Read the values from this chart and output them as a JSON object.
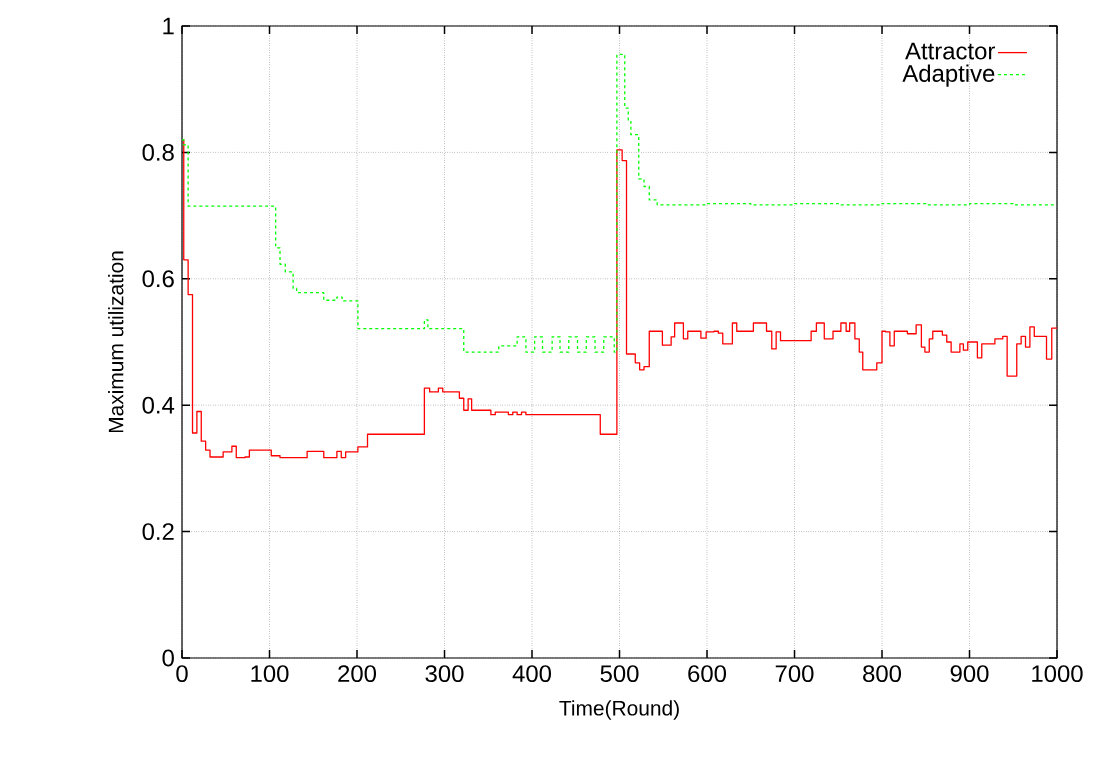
{
  "chart_data": {
    "type": "step",
    "xlabel": "Time(Round)",
    "ylabel": "Maximum utilization",
    "xlim": [
      0,
      1000
    ],
    "ylim": [
      0,
      1
    ],
    "xticks": [
      0,
      100,
      200,
      300,
      400,
      500,
      600,
      700,
      800,
      900,
      1000
    ],
    "yticks": [
      0,
      0.2,
      0.4,
      0.6,
      0.8,
      1
    ],
    "grid": true,
    "legend": "top right",
    "series": [
      {
        "name": "Attractor",
        "color": "#ff0000",
        "line_style": "solid",
        "x": [
          0,
          2,
          7,
          12,
          17,
          22,
          27,
          32,
          47,
          57,
          62,
          72,
          77,
          102,
          112,
          143,
          162,
          177,
          182,
          187,
          201,
          212,
          277,
          283,
          293,
          298,
          317,
          322,
          327,
          331,
          353,
          358,
          373,
          378,
          383,
          388,
          393,
          478,
          497,
          503,
          508,
          518,
          523,
          528,
          534,
          549,
          559,
          563,
          573,
          578,
          593,
          599,
          608,
          613,
          618,
          629,
          634,
          653,
          668,
          674,
          679,
          684,
          719,
          725,
          734,
          744,
          753,
          759,
          763,
          769,
          774,
          778,
          794,
          800,
          804,
          809,
          814,
          829,
          839,
          845,
          849,
          854,
          858,
          869,
          874,
          879,
          889,
          893,
          898,
          909,
          914,
          929,
          938,
          943,
          954,
          959,
          964,
          969,
          974,
          988,
          994,
          1000
        ],
        "values": [
          0.82,
          0.63,
          0.575,
          0.356,
          0.39,
          0.343,
          0.329,
          0.318,
          0.326,
          0.335,
          0.317,
          0.318,
          0.329,
          0.32,
          0.317,
          0.327,
          0.317,
          0.327,
          0.317,
          0.326,
          0.334,
          0.354,
          0.427,
          0.421,
          0.427,
          0.421,
          0.411,
          0.392,
          0.41,
          0.392,
          0.385,
          0.389,
          0.385,
          0.389,
          0.385,
          0.389,
          0.385,
          0.354,
          0.804,
          0.787,
          0.481,
          0.467,
          0.456,
          0.461,
          0.517,
          0.495,
          0.508,
          0.53,
          0.505,
          0.517,
          0.506,
          0.516,
          0.517,
          0.514,
          0.497,
          0.53,
          0.517,
          0.53,
          0.517,
          0.489,
          0.516,
          0.502,
          0.517,
          0.53,
          0.505,
          0.517,
          0.53,
          0.517,
          0.53,
          0.505,
          0.484,
          0.456,
          0.467,
          0.517,
          0.516,
          0.494,
          0.517,
          0.513,
          0.527,
          0.492,
          0.484,
          0.505,
          0.517,
          0.511,
          0.5,
          0.484,
          0.497,
          0.487,
          0.5,
          0.475,
          0.497,
          0.505,
          0.509,
          0.446,
          0.497,
          0.509,
          0.492,
          0.524,
          0.509,
          0.473,
          0.522,
          0.522
        ]
      },
      {
        "name": "Adaptive",
        "color": "#00ff00",
        "line_style": "dashed",
        "x": [
          0,
          2,
          7,
          107,
          112,
          118,
          127,
          131,
          162,
          177,
          183,
          201,
          277,
          281,
          322,
          362,
          383,
          393,
          403,
          412,
          423,
          432,
          442,
          452,
          462,
          472,
          482,
          494,
          497,
          506,
          510,
          513,
          522,
          528,
          534,
          543,
          600,
          650,
          700,
          750,
          800,
          850,
          900,
          950,
          1000
        ],
        "values": [
          0.82,
          0.812,
          0.715,
          0.649,
          0.623,
          0.611,
          0.585,
          0.578,
          0.566,
          0.571,
          0.565,
          0.521,
          0.535,
          0.521,
          0.484,
          0.494,
          0.508,
          0.484,
          0.508,
          0.484,
          0.508,
          0.484,
          0.508,
          0.484,
          0.508,
          0.484,
          0.508,
          0.484,
          0.955,
          0.87,
          0.85,
          0.828,
          0.758,
          0.746,
          0.725,
          0.717,
          0.719,
          0.717,
          0.719,
          0.717,
          0.719,
          0.717,
          0.719,
          0.717,
          0.717
        ]
      }
    ]
  }
}
